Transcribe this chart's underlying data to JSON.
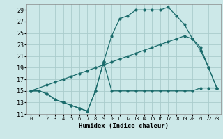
{
  "xlabel": "Humidex (Indice chaleur)",
  "bg_color": "#cce8e8",
  "grid_color": "#aacccc",
  "line_color": "#1a6b6b",
  "xlim": [
    -0.5,
    23.5
  ],
  "ylim": [
    11,
    30
  ],
  "xticks": [
    0,
    1,
    2,
    3,
    4,
    5,
    6,
    7,
    8,
    9,
    10,
    11,
    12,
    13,
    14,
    15,
    16,
    17,
    18,
    19,
    20,
    21,
    22,
    23
  ],
  "yticks": [
    11,
    13,
    15,
    17,
    19,
    21,
    23,
    25,
    27,
    29
  ],
  "line1_x": [
    0,
    1,
    2,
    3,
    4,
    5,
    6,
    7,
    8,
    9,
    10,
    11,
    12,
    13,
    14,
    15,
    16,
    17,
    18,
    19,
    20,
    21,
    22,
    23
  ],
  "line1_y": [
    15,
    15,
    14.5,
    13.5,
    13,
    12.5,
    12,
    11.5,
    15,
    20,
    15,
    15,
    15,
    15,
    15,
    15,
    15,
    15,
    15,
    15,
    15,
    15.5,
    15.5,
    15.5
  ],
  "line2_x": [
    0,
    2,
    3,
    4,
    5,
    6,
    7,
    8,
    9,
    10,
    11,
    12,
    13,
    14,
    15,
    16,
    17,
    18,
    19,
    20,
    21,
    22,
    23
  ],
  "line2_y": [
    15,
    16,
    16.5,
    17,
    17.5,
    18,
    18.5,
    19,
    19.5,
    20,
    20.5,
    21,
    21.5,
    22,
    22.5,
    23,
    23.5,
    24,
    24.5,
    24,
    22.5,
    19,
    15.5
  ],
  "line3_x": [
    0,
    1,
    2,
    3,
    4,
    5,
    6,
    7,
    8,
    9,
    10,
    11,
    12,
    13,
    14,
    15,
    16,
    17,
    18,
    19,
    20,
    21,
    22,
    23
  ],
  "line3_y": [
    15,
    15,
    14.5,
    13.5,
    13,
    12.5,
    12,
    11.5,
    15,
    20,
    24.5,
    27.5,
    28,
    29,
    29,
    29,
    29,
    29.5,
    28,
    26.5,
    24,
    22,
    19,
    15.5
  ]
}
